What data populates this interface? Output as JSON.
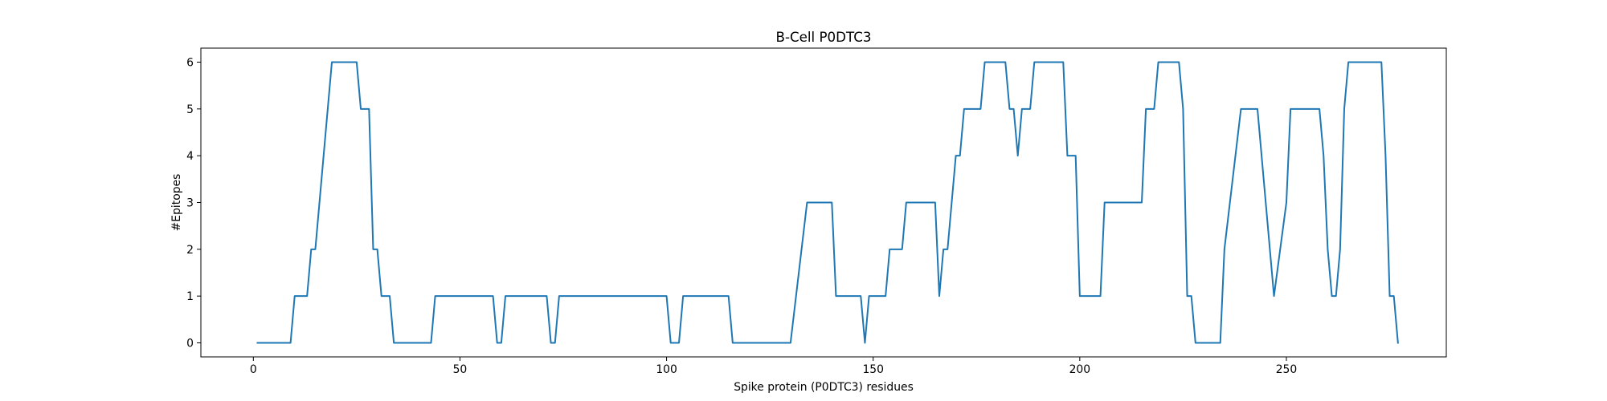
{
  "chart_data": {
    "type": "line",
    "title": "B-Cell P0DTC3",
    "xlabel": "Spike protein (P0DTC3) residues",
    "ylabel": "#Epitopes",
    "xlim": [
      -12.7,
      288.7
    ],
    "ylim": [
      -0.3,
      6.3
    ],
    "xticks": [
      0,
      50,
      100,
      150,
      200,
      250
    ],
    "yticks": [
      0,
      1,
      2,
      3,
      4,
      5,
      6
    ],
    "grid": false,
    "legend": "none",
    "series": [
      {
        "color": "#1f77b4",
        "points": [
          [
            1,
            0
          ],
          [
            9,
            0
          ],
          [
            10,
            1
          ],
          [
            13,
            1
          ],
          [
            14,
            2
          ],
          [
            15,
            2
          ],
          [
            19,
            6
          ],
          [
            25,
            6
          ],
          [
            26,
            5
          ],
          [
            28,
            5
          ],
          [
            29,
            2
          ],
          [
            30,
            2
          ],
          [
            31,
            1
          ],
          [
            33,
            1
          ],
          [
            34,
            0
          ],
          [
            43,
            0
          ],
          [
            44,
            1
          ],
          [
            58,
            1
          ],
          [
            59,
            0
          ],
          [
            60,
            0
          ],
          [
            61,
            1
          ],
          [
            71,
            1
          ],
          [
            72,
            0
          ],
          [
            73,
            0
          ],
          [
            74,
            1
          ],
          [
            100,
            1
          ],
          [
            101,
            0
          ],
          [
            103,
            0
          ],
          [
            104,
            1
          ],
          [
            115,
            1
          ],
          [
            116,
            0
          ],
          [
            130,
            0
          ],
          [
            134,
            3
          ],
          [
            140,
            3
          ],
          [
            141,
            1
          ],
          [
            147,
            1
          ],
          [
            148,
            0
          ],
          [
            149,
            1
          ],
          [
            153,
            1
          ],
          [
            154,
            2
          ],
          [
            157,
            2
          ],
          [
            158,
            3
          ],
          [
            165,
            3
          ],
          [
            166,
            1
          ],
          [
            167,
            2
          ],
          [
            168,
            2
          ],
          [
            170,
            4
          ],
          [
            171,
            4
          ],
          [
            172,
            5
          ],
          [
            176,
            5
          ],
          [
            177,
            6
          ],
          [
            182,
            6
          ],
          [
            183,
            5
          ],
          [
            184,
            5
          ],
          [
            185,
            4
          ],
          [
            186,
            5
          ],
          [
            188,
            5
          ],
          [
            189,
            6
          ],
          [
            196,
            6
          ],
          [
            197,
            4
          ],
          [
            199,
            4
          ],
          [
            200,
            1
          ],
          [
            205,
            1
          ],
          [
            206,
            3
          ],
          [
            215,
            3
          ],
          [
            216,
            5
          ],
          [
            218,
            5
          ],
          [
            219,
            6
          ],
          [
            224,
            6
          ],
          [
            225,
            5
          ],
          [
            226,
            1
          ],
          [
            227,
            1
          ],
          [
            228,
            0
          ],
          [
            234,
            0
          ],
          [
            235,
            2
          ],
          [
            239,
            5
          ],
          [
            243,
            5
          ],
          [
            247,
            1
          ],
          [
            250,
            3
          ],
          [
            251,
            5
          ],
          [
            258,
            5
          ],
          [
            259,
            4
          ],
          [
            260,
            2
          ],
          [
            261,
            1
          ],
          [
            262,
            1
          ],
          [
            263,
            2
          ],
          [
            264,
            5
          ],
          [
            265,
            6
          ],
          [
            273,
            6
          ],
          [
            274,
            4
          ],
          [
            275,
            1
          ],
          [
            276,
            1
          ],
          [
            277,
            0
          ]
        ]
      }
    ]
  }
}
